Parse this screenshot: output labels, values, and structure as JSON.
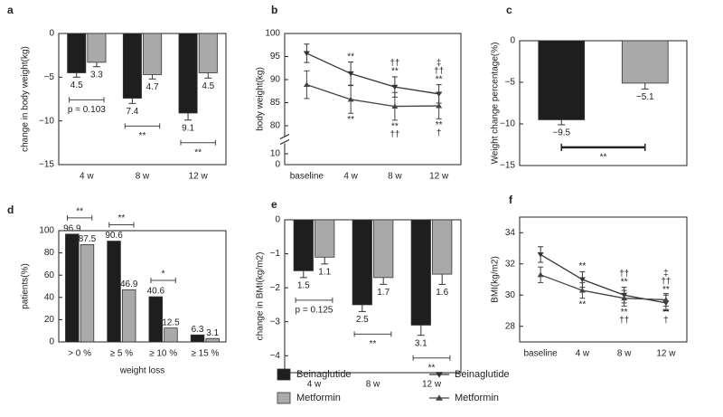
{
  "chart_data": [
    {
      "type": "bar",
      "title": "a",
      "ylabel": "change in body weight(kg)",
      "categories": [
        "4 w",
        "8 w",
        "12 w"
      ],
      "series": [
        {
          "name": "Beinaglutide",
          "color": "#1e1e1e",
          "values": [
            -4.5,
            -7.4,
            -9.1
          ],
          "errors": [
            0.5,
            0.6,
            0.8
          ],
          "value_labels": [
            "4.5",
            "7.4",
            "9.1"
          ]
        },
        {
          "name": "Metformin",
          "color": "#a9a9a9",
          "values": [
            -3.3,
            -4.7,
            -4.5
          ],
          "errors": [
            0.5,
            0.5,
            0.6
          ],
          "value_labels": [
            "3.3",
            "4.7",
            "4.5"
          ]
        }
      ],
      "ylim": [
        -15,
        0
      ],
      "yticks": [
        {
          "value": -15,
          "label": "−15"
        },
        {
          "value": -10,
          "label": "−10"
        },
        {
          "value": -5,
          "label": "−5"
        },
        0
      ],
      "annotations": [
        "p = 0.103",
        "**",
        "**"
      ]
    },
    {
      "type": "line",
      "title": "b",
      "ylabel": "body weight(kg)",
      "categories": [
        "baseline",
        "4 w",
        "8 w",
        "12 w"
      ],
      "series": [
        {
          "name": "Beinaglutide",
          "color": "#333333",
          "marker": "triangle-down",
          "values": [
            95.7,
            91.3,
            88.4,
            86.9
          ],
          "errors": [
            2.0,
            2.5,
            2.2,
            2.0
          ],
          "annotations": [
            [],
            [
              "**"
            ],
            [
              "††",
              "**"
            ],
            [
              "‡",
              "††",
              "**"
            ]
          ]
        },
        {
          "name": "Metformin",
          "color": "#444444",
          "marker": "triangle-up",
          "values": [
            88.9,
            85.7,
            84.2,
            84.3
          ],
          "errors": [
            3.0,
            3.0,
            3.0,
            2.8
          ],
          "annotations": [
            [],
            [
              "**"
            ],
            [
              "**",
              "††"
            ],
            [
              "**",
              "†"
            ]
          ]
        }
      ],
      "ylim": [
        0,
        100
      ],
      "ybreak": [
        10,
        80
      ],
      "yticks": [
        0,
        10,
        80,
        85,
        90,
        95,
        100
      ]
    },
    {
      "type": "bar",
      "title": "c",
      "ylabel": "Weight change percentage(%)",
      "categories": [
        null,
        null
      ],
      "values": [
        -9.5,
        -5.1
      ],
      "colors": [
        "#1e1e1e",
        "#a9a9a9"
      ],
      "errors": [
        0.6,
        0.7
      ],
      "value_labels": [
        "−9.5",
        "−5.1"
      ],
      "ylim": [
        -15,
        0
      ],
      "yticks": [
        {
          "value": -15,
          "label": "−15"
        },
        {
          "value": -10,
          "label": "−10"
        },
        {
          "value": -5,
          "label": "−5"
        },
        0
      ],
      "annotation": "**"
    },
    {
      "type": "bar",
      "title": "d",
      "ylabel": "patients(%)",
      "xlabel": "weight loss",
      "categories": [
        "> 0 %",
        "≥ 5 %",
        "≥ 10 %",
        "≥ 15 %"
      ],
      "series": [
        {
          "name": "Beinaglutide",
          "color": "#1e1e1e",
          "values": [
            96.9,
            90.6,
            40.6,
            6.3
          ]
        },
        {
          "name": "Metformin",
          "color": "#a9a9a9",
          "values": [
            87.5,
            46.9,
            12.5,
            3.1
          ]
        }
      ],
      "ylim": [
        0,
        100
      ],
      "yticks": [
        0,
        20,
        40,
        60,
        80,
        100
      ],
      "annotations": [
        "**",
        "**",
        "*",
        null
      ]
    },
    {
      "type": "bar",
      "title": "e",
      "ylabel": "change in BMI(kg/m2)",
      "categories": [
        "4 w",
        "8 w",
        "12 w"
      ],
      "series": [
        {
          "name": "Beinaglutide",
          "color": "#1e1e1e",
          "values": [
            -1.5,
            -2.5,
            -3.1
          ],
          "errors": [
            0.2,
            0.2,
            0.3
          ],
          "value_labels": [
            "1.5",
            "2.5",
            "3.1"
          ]
        },
        {
          "name": "Metformin",
          "color": "#a9a9a9",
          "values": [
            -1.1,
            -1.7,
            -1.6
          ],
          "errors": [
            0.2,
            0.2,
            0.3
          ],
          "value_labels": [
            "1.1",
            "1.7",
            "1.6"
          ]
        }
      ],
      "ylim": [
        -4.5,
        0
      ],
      "yticks": [
        {
          "value": -4,
          "label": "−4"
        },
        {
          "value": -3,
          "label": "−3"
        },
        {
          "value": -2,
          "label": "−2"
        },
        {
          "value": -1,
          "label": "−1"
        },
        0
      ],
      "annotations": [
        "p = 0.125",
        "**",
        "**"
      ]
    },
    {
      "type": "line",
      "title": "f",
      "ylabel": "BMI(kg/m2)",
      "categories": [
        "baseline",
        "4 w",
        "8 w",
        "12 w"
      ],
      "series": [
        {
          "name": "Beinaglutide",
          "color": "#333333",
          "marker": "triangle-down",
          "values": [
            32.6,
            31.0,
            30.0,
            29.5
          ],
          "errors": [
            0.5,
            0.5,
            0.5,
            0.5
          ],
          "annotations": [
            [],
            [
              "**"
            ],
            [
              "††",
              "**"
            ],
            [
              "‡",
              "††",
              "**"
            ]
          ]
        },
        {
          "name": "Metformin",
          "color": "#444444",
          "marker": "triangle-up",
          "values": [
            31.3,
            30.3,
            29.8,
            29.7
          ],
          "errors": [
            0.5,
            0.5,
            0.5,
            0.4
          ],
          "annotations": [
            [],
            [
              "**"
            ],
            [
              "**",
              "††"
            ],
            [
              "**",
              "†"
            ]
          ]
        }
      ],
      "ylim": [
        27,
        35
      ],
      "yticks": [
        28,
        30,
        32,
        34
      ]
    }
  ]
}
